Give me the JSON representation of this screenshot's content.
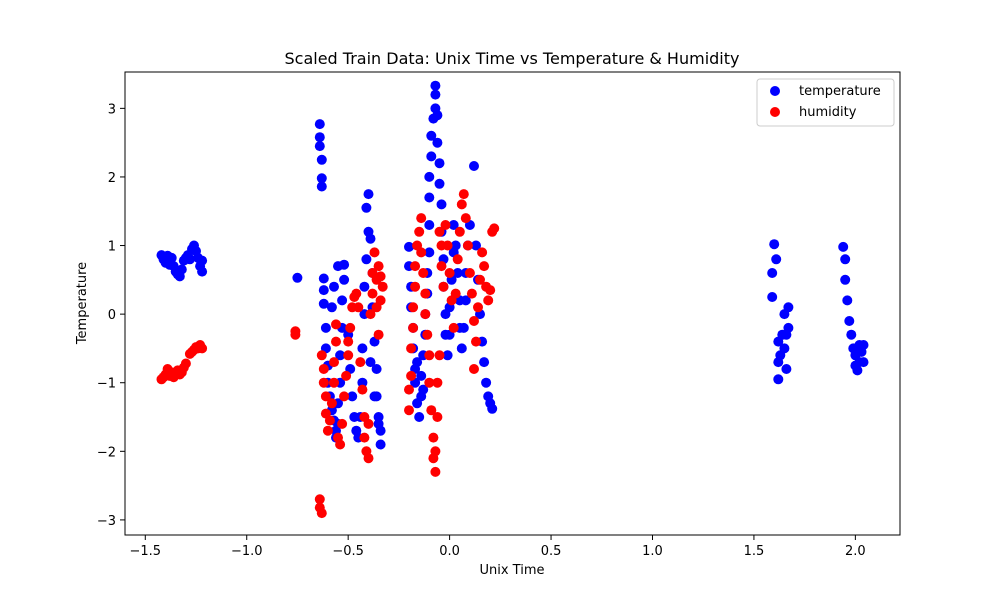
{
  "chart_data": {
    "type": "scatter",
    "title": "Scaled Train Data: Unix Time vs Temperature & Humidity",
    "xlabel": "Unix Time",
    "ylabel": "Temperature",
    "xlim": [
      -1.6,
      2.22
    ],
    "ylim": [
      -3.22,
      3.53
    ],
    "xticks": [
      -1.5,
      -1.0,
      -0.5,
      0.0,
      0.5,
      1.0,
      1.5,
      2.0
    ],
    "xtick_labels": [
      "−1.5",
      "−1.0",
      "−0.5",
      "0.0",
      "0.5",
      "1.0",
      "1.5",
      "2.0"
    ],
    "yticks": [
      -3,
      -2,
      -1,
      0,
      1,
      2,
      3
    ],
    "ytick_labels": [
      "−3",
      "−2",
      "−1",
      "0",
      "1",
      "2",
      "3"
    ],
    "grid": false,
    "legend_position": "top-right",
    "series": [
      {
        "name": "temperature",
        "color": "#0000ff",
        "points": [
          [
            -1.42,
            0.86
          ],
          [
            -1.41,
            0.8
          ],
          [
            -1.4,
            0.75
          ],
          [
            -1.39,
            0.85
          ],
          [
            -1.38,
            0.72
          ],
          [
            -1.37,
            0.82
          ],
          [
            -1.36,
            0.7
          ],
          [
            -1.35,
            0.62
          ],
          [
            -1.34,
            0.58
          ],
          [
            -1.33,
            0.55
          ],
          [
            -1.32,
            0.65
          ],
          [
            -1.31,
            0.78
          ],
          [
            -1.3,
            0.82
          ],
          [
            -1.29,
            0.86
          ],
          [
            -1.28,
            0.8
          ],
          [
            -1.27,
            0.95
          ],
          [
            -1.26,
            1.0
          ],
          [
            -1.25,
            0.92
          ],
          [
            -1.24,
            0.82
          ],
          [
            -1.23,
            0.7
          ],
          [
            -1.22,
            0.62
          ],
          [
            -1.22,
            0.78
          ],
          [
            -0.75,
            0.53
          ],
          [
            -0.64,
            2.77
          ],
          [
            -0.64,
            2.58
          ],
          [
            -0.64,
            2.45
          ],
          [
            -0.63,
            2.25
          ],
          [
            -0.63,
            1.98
          ],
          [
            -0.63,
            1.86
          ],
          [
            -0.62,
            0.52
          ],
          [
            -0.62,
            0.35
          ],
          [
            -0.62,
            0.15
          ],
          [
            -0.61,
            -0.2
          ],
          [
            -0.61,
            -0.5
          ],
          [
            -0.6,
            -0.75
          ],
          [
            -0.6,
            -1.0
          ],
          [
            -0.59,
            -1.2
          ],
          [
            -0.58,
            -1.4
          ],
          [
            -0.57,
            -1.55
          ],
          [
            -0.56,
            -1.7
          ],
          [
            -0.56,
            -1.8
          ],
          [
            -0.55,
            -1.6
          ],
          [
            -0.55,
            -1.3
          ],
          [
            -0.54,
            -1.0
          ],
          [
            -0.54,
            -0.6
          ],
          [
            -0.53,
            -0.2
          ],
          [
            -0.53,
            0.2
          ],
          [
            -0.52,
            0.5
          ],
          [
            -0.52,
            0.72
          ],
          [
            -0.55,
            0.7
          ],
          [
            -0.57,
            0.4
          ],
          [
            -0.58,
            0.1
          ],
          [
            -0.5,
            -0.3
          ],
          [
            -0.49,
            -0.8
          ],
          [
            -0.48,
            -1.2
          ],
          [
            -0.47,
            -1.5
          ],
          [
            -0.46,
            -1.7
          ],
          [
            -0.45,
            -1.8
          ],
          [
            -0.44,
            -1.5
          ],
          [
            -0.43,
            -1.0
          ],
          [
            -0.43,
            -0.5
          ],
          [
            -0.42,
            0.0
          ],
          [
            -0.42,
            0.4
          ],
          [
            -0.41,
            0.8
          ],
          [
            -0.4,
            1.2
          ],
          [
            -0.41,
            1.55
          ],
          [
            -0.4,
            1.75
          ],
          [
            -0.39,
            1.1
          ],
          [
            -0.38,
            0.6
          ],
          [
            -0.38,
            0.1
          ],
          [
            -0.37,
            -0.4
          ],
          [
            -0.36,
            -0.8
          ],
          [
            -0.36,
            -1.2
          ],
          [
            -0.35,
            -1.5
          ],
          [
            -0.34,
            -1.7
          ],
          [
            -0.34,
            -1.9
          ],
          [
            -0.35,
            -1.6
          ],
          [
            -0.37,
            -1.2
          ],
          [
            -0.39,
            -0.7
          ],
          [
            -0.2,
            0.98
          ],
          [
            -0.2,
            0.7
          ],
          [
            -0.19,
            0.4
          ],
          [
            -0.19,
            0.1
          ],
          [
            -0.18,
            -0.2
          ],
          [
            -0.18,
            -0.5
          ],
          [
            -0.17,
            -0.8
          ],
          [
            -0.17,
            -1.0
          ],
          [
            -0.16,
            -1.3
          ],
          [
            -0.15,
            -1.5
          ],
          [
            -0.14,
            -1.2
          ],
          [
            -0.14,
            -0.9
          ],
          [
            -0.13,
            -0.6
          ],
          [
            -0.12,
            -0.3
          ],
          [
            -0.12,
            0.0
          ],
          [
            -0.11,
            0.3
          ],
          [
            -0.11,
            0.6
          ],
          [
            -0.1,
            0.9
          ],
          [
            -0.1,
            1.3
          ],
          [
            -0.1,
            1.7
          ],
          [
            -0.1,
            2.0
          ],
          [
            -0.09,
            2.3
          ],
          [
            -0.09,
            2.6
          ],
          [
            -0.08,
            2.85
          ],
          [
            -0.07,
            3.0
          ],
          [
            -0.07,
            3.2
          ],
          [
            -0.07,
            3.33
          ],
          [
            -0.06,
            2.9
          ],
          [
            -0.06,
            2.5
          ],
          [
            -0.05,
            2.2
          ],
          [
            -0.05,
            1.9
          ],
          [
            -0.04,
            1.6
          ],
          [
            -0.04,
            1.2
          ],
          [
            -0.03,
            0.8
          ],
          [
            -0.03,
            0.4
          ],
          [
            -0.02,
            0.0
          ],
          [
            -0.02,
            -0.3
          ],
          [
            -0.01,
            -0.6
          ],
          [
            0.0,
            -0.3
          ],
          [
            0.0,
            0.1
          ],
          [
            0.01,
            0.5
          ],
          [
            0.02,
            0.9
          ],
          [
            0.02,
            1.3
          ],
          [
            0.03,
            1.0
          ],
          [
            0.04,
            0.6
          ],
          [
            0.05,
            0.2
          ],
          [
            0.05,
            -0.2
          ],
          [
            0.06,
            -0.5
          ],
          [
            0.07,
            -0.2
          ],
          [
            0.08,
            0.2
          ],
          [
            0.08,
            0.6
          ],
          [
            0.09,
            1.0
          ],
          [
            0.1,
            1.3
          ],
          [
            0.12,
            2.16
          ],
          [
            0.13,
            1.0
          ],
          [
            0.14,
            0.5
          ],
          [
            0.15,
            0.0
          ],
          [
            0.16,
            -0.4
          ],
          [
            0.17,
            -0.7
          ],
          [
            0.18,
            -1.0
          ],
          [
            0.19,
            -1.2
          ],
          [
            0.2,
            -1.3
          ],
          [
            0.21,
            -1.38
          ],
          [
            -0.16,
            -0.7
          ],
          [
            -0.13,
            -1.1
          ],
          [
            1.59,
            0.6
          ],
          [
            1.59,
            0.25
          ],
          [
            1.6,
            1.02
          ],
          [
            1.61,
            0.8
          ],
          [
            1.62,
            -0.4
          ],
          [
            1.62,
            -0.7
          ],
          [
            1.62,
            -0.95
          ],
          [
            1.63,
            -0.6
          ],
          [
            1.64,
            -0.3
          ],
          [
            1.65,
            0.0
          ],
          [
            1.65,
            -0.5
          ],
          [
            1.66,
            -0.8
          ],
          [
            1.66,
            -0.3
          ],
          [
            1.67,
            0.1
          ],
          [
            1.67,
            -0.2
          ],
          [
            1.94,
            0.98
          ],
          [
            1.95,
            0.8
          ],
          [
            1.95,
            0.5
          ],
          [
            1.96,
            0.2
          ],
          [
            1.97,
            -0.1
          ],
          [
            1.98,
            -0.3
          ],
          [
            1.99,
            -0.5
          ],
          [
            2.0,
            -0.6
          ],
          [
            2.0,
            -0.75
          ],
          [
            2.01,
            -0.82
          ],
          [
            2.02,
            -0.7
          ],
          [
            2.03,
            -0.55
          ],
          [
            2.04,
            -0.45
          ],
          [
            2.04,
            -0.7
          ],
          [
            2.02,
            -0.45
          ]
        ]
      },
      {
        "name": "humidity",
        "color": "#ff0000",
        "points": [
          [
            -1.42,
            -0.95
          ],
          [
            -1.41,
            -0.92
          ],
          [
            -1.4,
            -0.88
          ],
          [
            -1.39,
            -0.8
          ],
          [
            -1.38,
            -0.9
          ],
          [
            -1.37,
            -0.85
          ],
          [
            -1.36,
            -0.92
          ],
          [
            -1.35,
            -0.88
          ],
          [
            -1.34,
            -0.82
          ],
          [
            -1.33,
            -0.88
          ],
          [
            -1.32,
            -0.85
          ],
          [
            -1.31,
            -0.78
          ],
          [
            -1.3,
            -0.72
          ],
          [
            -1.28,
            -0.58
          ],
          [
            -1.27,
            -0.55
          ],
          [
            -1.26,
            -0.52
          ],
          [
            -1.25,
            -0.48
          ],
          [
            -1.24,
            -0.5
          ],
          [
            -1.23,
            -0.45
          ],
          [
            -1.22,
            -0.5
          ],
          [
            -0.76,
            -0.25
          ],
          [
            -0.76,
            -0.3
          ],
          [
            -0.64,
            -2.7
          ],
          [
            -0.64,
            -2.82
          ],
          [
            -0.63,
            -2.9
          ],
          [
            -0.63,
            -0.6
          ],
          [
            -0.62,
            -0.8
          ],
          [
            -0.62,
            -1.0
          ],
          [
            -0.61,
            -1.2
          ],
          [
            -0.61,
            -1.45
          ],
          [
            -0.6,
            -1.7
          ],
          [
            -0.59,
            -1.55
          ],
          [
            -0.58,
            -1.3
          ],
          [
            -0.57,
            -1.0
          ],
          [
            -0.57,
            -0.7
          ],
          [
            -0.56,
            -0.4
          ],
          [
            -0.56,
            -0.15
          ],
          [
            -0.55,
            -1.8
          ],
          [
            -0.54,
            -1.9
          ],
          [
            -0.53,
            -1.6
          ],
          [
            -0.52,
            -1.2
          ],
          [
            -0.51,
            -0.9
          ],
          [
            -0.5,
            -0.6
          ],
          [
            -0.5,
            -0.4
          ],
          [
            -0.49,
            -0.2
          ],
          [
            -0.48,
            0.1
          ],
          [
            -0.47,
            0.25
          ],
          [
            -0.46,
            0.3
          ],
          [
            -0.45,
            0.1
          ],
          [
            -0.44,
            -0.7
          ],
          [
            -0.43,
            -1.1
          ],
          [
            -0.42,
            -1.5
          ],
          [
            -0.42,
            -1.8
          ],
          [
            -0.41,
            -2.0
          ],
          [
            -0.4,
            -2.1
          ],
          [
            -0.4,
            -1.6
          ],
          [
            -0.39,
            0.0
          ],
          [
            -0.38,
            0.3
          ],
          [
            -0.38,
            0.6
          ],
          [
            -0.37,
            0.9
          ],
          [
            -0.36,
            0.5
          ],
          [
            -0.36,
            0.1
          ],
          [
            -0.35,
            -0.3
          ],
          [
            -0.34,
            0.2
          ],
          [
            -0.34,
            0.55
          ],
          [
            -0.33,
            0.4
          ],
          [
            -0.35,
            0.7
          ],
          [
            -0.2,
            -1.4
          ],
          [
            -0.2,
            -1.1
          ],
          [
            -0.19,
            -0.9
          ],
          [
            -0.19,
            -0.5
          ],
          [
            -0.18,
            -0.2
          ],
          [
            -0.18,
            0.1
          ],
          [
            -0.17,
            0.4
          ],
          [
            -0.17,
            0.7
          ],
          [
            -0.16,
            1.0
          ],
          [
            -0.15,
            1.2
          ],
          [
            -0.14,
            1.4
          ],
          [
            -0.14,
            0.9
          ],
          [
            -0.13,
            0.6
          ],
          [
            -0.12,
            0.3
          ],
          [
            -0.12,
            0.0
          ],
          [
            -0.11,
            -0.3
          ],
          [
            -0.1,
            -0.6
          ],
          [
            -0.1,
            -1.0
          ],
          [
            -0.09,
            -1.4
          ],
          [
            -0.08,
            -1.8
          ],
          [
            -0.08,
            -2.1
          ],
          [
            -0.07,
            -2.3
          ],
          [
            -0.07,
            -2.0
          ],
          [
            -0.06,
            -1.5
          ],
          [
            -0.06,
            -1.0
          ],
          [
            -0.05,
            -0.6
          ],
          [
            -0.05,
            1.2
          ],
          [
            -0.04,
            1.0
          ],
          [
            -0.04,
            0.7
          ],
          [
            -0.03,
            0.4
          ],
          [
            -0.02,
            1.3
          ],
          [
            -0.01,
            1.0
          ],
          [
            0.0,
            0.6
          ],
          [
            0.01,
            0.2
          ],
          [
            0.02,
            -0.2
          ],
          [
            0.03,
            0.3
          ],
          [
            0.04,
            0.8
          ],
          [
            0.05,
            1.2
          ],
          [
            0.06,
            1.6
          ],
          [
            0.07,
            1.75
          ],
          [
            0.08,
            1.4
          ],
          [
            0.09,
            1.0
          ],
          [
            0.1,
            0.6
          ],
          [
            0.11,
            0.3
          ],
          [
            0.12,
            -0.1
          ],
          [
            0.12,
            -0.8
          ],
          [
            0.13,
            -0.4
          ],
          [
            0.14,
            0.1
          ],
          [
            0.15,
            0.5
          ],
          [
            0.16,
            0.9
          ],
          [
            0.17,
            0.7
          ],
          [
            0.18,
            0.4
          ],
          [
            0.19,
            0.2
          ],
          [
            0.2,
            0.35
          ],
          [
            0.21,
            1.2
          ],
          [
            0.22,
            1.25
          ]
        ]
      }
    ]
  }
}
